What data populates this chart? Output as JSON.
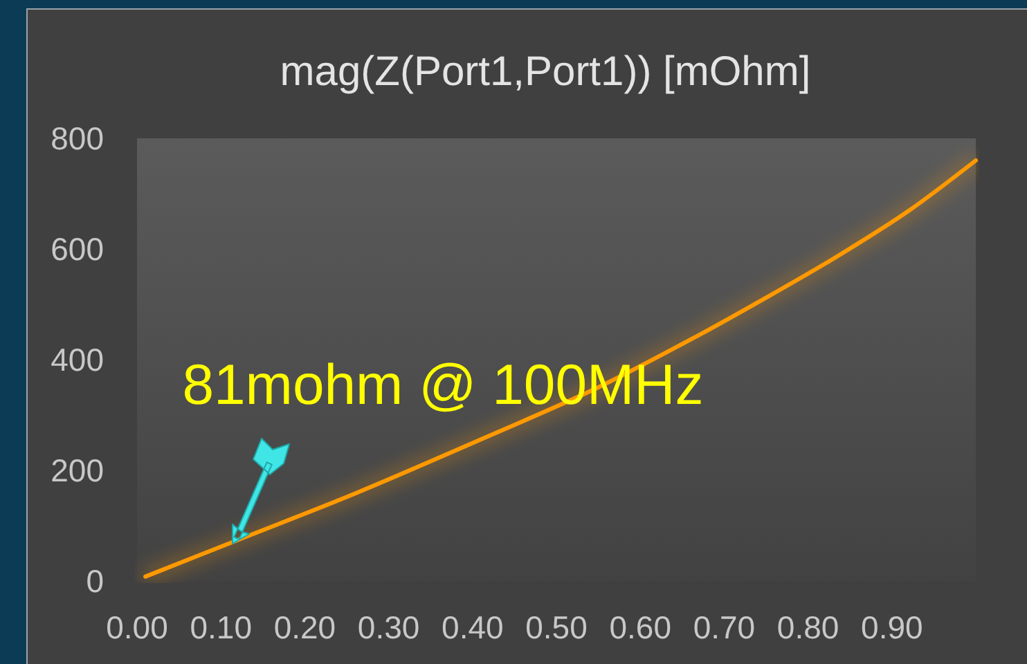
{
  "chart_data": {
    "type": "line",
    "title": "mag(Z(Port1,Port1)) [mOhm]",
    "x": [
      0.01,
      0.115,
      0.26,
      0.43,
      0.55,
      0.667,
      0.75,
      0.833,
      0.92,
      1.0
    ],
    "series": [
      {
        "color": "#ff9900",
        "values": [
          8,
          71,
          158,
          269,
          350,
          442,
          512,
          585,
          669,
          760
        ]
      }
    ],
    "xlim": [
      0,
      1.0
    ],
    "xticks": [
      {
        "value": 0,
        "label": "0.00"
      },
      {
        "value": 0.1,
        "label": "0.10"
      },
      {
        "value": 0.2,
        "label": "0.20"
      },
      {
        "value": 0.3,
        "label": "0.30"
      },
      {
        "value": 0.4,
        "label": "0.40"
      },
      {
        "value": 0.5,
        "label": "0.50"
      },
      {
        "value": 0.6,
        "label": "0.60"
      },
      {
        "value": 0.7,
        "label": "0.70"
      },
      {
        "value": 0.8,
        "label": "0.80"
      },
      {
        "value": 0.9,
        "label": "0.90"
      }
    ],
    "ylim": [
      0,
      800
    ],
    "yticks": [
      0,
      200,
      400,
      600,
      800
    ],
    "marker": "none",
    "annotations": [
      {
        "text": "81mohm @ 100MHz",
        "x": 0.115,
        "y": 70
      }
    ]
  }
}
